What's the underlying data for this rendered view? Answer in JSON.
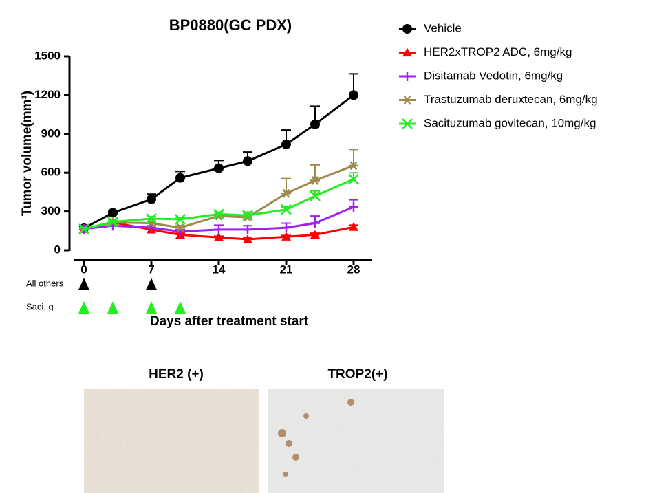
{
  "chart_data": {
    "type": "line",
    "title": "BP0880(GC PDX)",
    "x_label": "Days after treatment start",
    "y_label": "Tumor volume(mm³)",
    "x": [
      0,
      3,
      7,
      10,
      14,
      17,
      21,
      24,
      28
    ],
    "xlim": [
      -1,
      30
    ],
    "xticks": [
      0,
      7,
      14,
      21,
      28
    ],
    "ylim": [
      0,
      1500
    ],
    "yticks": [
      0,
      300,
      600,
      900,
      1200,
      1500
    ],
    "series": [
      {
        "name": "Vehicle",
        "color": "#000000",
        "marker": "circle",
        "values": [
          170,
          290,
          395,
          560,
          635,
          690,
          820,
          975,
          1200
        ],
        "errors": [
          10,
          12,
          40,
          50,
          60,
          70,
          110,
          140,
          165
        ]
      },
      {
        "name": "HER2xTROP2 ADC, 6mg/kg",
        "color": "#ff0000",
        "marker": "triangle",
        "values": [
          165,
          215,
          160,
          120,
          100,
          85,
          105,
          120,
          180
        ],
        "errors": [
          10,
          15,
          15,
          12,
          10,
          10,
          10,
          12,
          15
        ]
      },
      {
        "name": "Disitamab Vedotin, 6mg/kg",
        "color": "#a020f0",
        "marker": "plus",
        "values": [
          165,
          190,
          175,
          145,
          160,
          160,
          175,
          210,
          335
        ],
        "errors": [
          10,
          15,
          15,
          15,
          35,
          30,
          35,
          55,
          55
        ]
      },
      {
        "name": "Trastuzumab deruxtecan, 6mg/kg",
        "color": "#9c8a4b",
        "marker": "star",
        "values": [
          165,
          215,
          210,
          175,
          265,
          255,
          440,
          540,
          655
        ],
        "errors": [
          10,
          15,
          15,
          15,
          30,
          40,
          115,
          120,
          125
        ]
      },
      {
        "name": "Sacituzumab govitecan, 10mg/kg",
        "color": "#22ee22",
        "marker": "x",
        "values": [
          165,
          220,
          245,
          240,
          280,
          270,
          315,
          420,
          550
        ],
        "errors": [
          10,
          12,
          15,
          15,
          15,
          20,
          20,
          40,
          50
        ]
      }
    ],
    "dosing": [
      {
        "label": "All others",
        "color": "#000000",
        "days": [
          0,
          7
        ]
      },
      {
        "label": "Saci. g",
        "color": "#22ee22",
        "days": [
          0,
          3,
          7,
          10
        ]
      }
    ]
  },
  "panels": [
    {
      "title": "HER2 (+)"
    },
    {
      "title": "TROP2(+)"
    }
  ]
}
